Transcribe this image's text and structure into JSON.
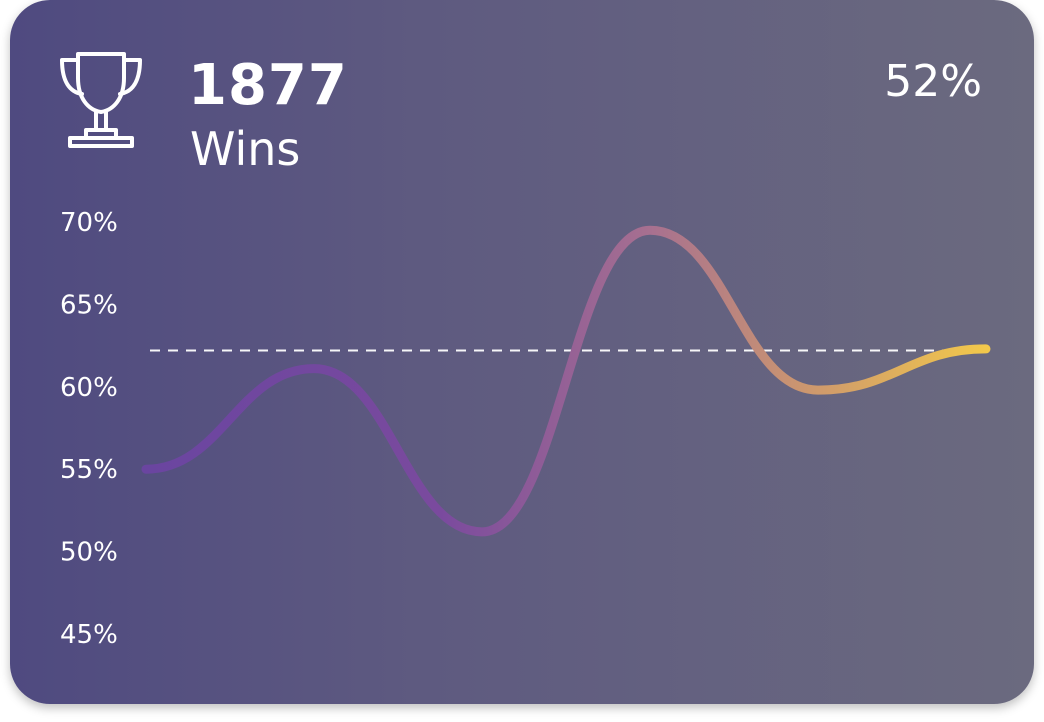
{
  "stat": {
    "count": "1877",
    "label": "Wins",
    "percent": "52%"
  },
  "colors": {
    "card_start": "#4f4a80",
    "card_end": "#6b6a7f",
    "line_start": "#6a45a0",
    "line_end": "#f2c84b",
    "reference": "#ffffff"
  },
  "chart_data": {
    "type": "line",
    "title": "",
    "xlabel": "",
    "ylabel": "",
    "ylim": [
      45,
      70
    ],
    "yticks": [
      "70%",
      "65%",
      "60%",
      "55%",
      "50%",
      "45%"
    ],
    "ytick_values": [
      70,
      65,
      60,
      55,
      50,
      45
    ],
    "grid": false,
    "reference_line": 62.2,
    "series": [
      {
        "x": [
          0,
          1,
          2,
          3,
          4,
          5
        ],
        "values": [
          55.0,
          61.1,
          51.2,
          69.5,
          59.8,
          62.3
        ]
      }
    ]
  }
}
